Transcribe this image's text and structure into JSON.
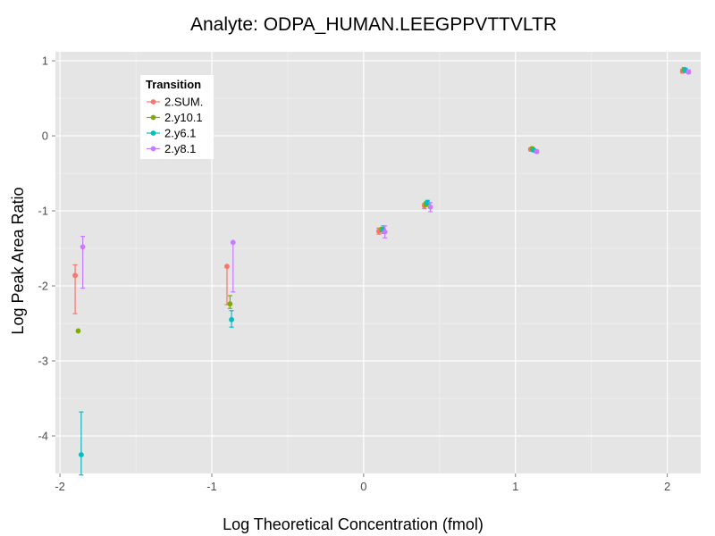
{
  "chart_data": {
    "type": "scatter",
    "title": "Analyte: ODPA_HUMAN.LEEGPPVTTVLTR",
    "xlabel": "Log Theoretical Concentration (fmol)",
    "ylabel": "Log Peak Area Ratio",
    "xlim": [
      -2.03,
      2.22
    ],
    "ylim": [
      -4.5,
      1.12
    ],
    "x_ticks": [
      "-2",
      "-1",
      "0",
      "1",
      "2"
    ],
    "y_ticks": [
      "1",
      "0",
      "-1",
      "-2",
      "-3",
      "-4"
    ],
    "grid": true,
    "legend": {
      "title": "Transition",
      "position": "top-left",
      "entries": [
        "2.SUM.",
        "2.y10.1",
        "2.y6.1",
        "2.y8.1"
      ]
    },
    "series": [
      {
        "name": "2.SUM.",
        "color": "#F8766D",
        "points": [
          {
            "x": -1.9,
            "y": -1.86,
            "ylo": -2.37,
            "yhi": -1.72
          },
          {
            "x": -0.9,
            "y": -1.74,
            "ylo": -2.25,
            "yhi": -1.74
          },
          {
            "x": 0.1,
            "y": -1.27,
            "ylo": -1.31,
            "yhi": -1.23
          },
          {
            "x": 0.4,
            "y": -0.93,
            "ylo": -0.97,
            "yhi": -0.9
          },
          {
            "x": 1.1,
            "y": -0.18,
            "ylo": -0.2,
            "yhi": -0.16
          },
          {
            "x": 2.1,
            "y": 0.86,
            "ylo": 0.84,
            "yhi": 0.89
          }
        ]
      },
      {
        "name": "2.y10.1",
        "color": "#7CAE00",
        "points": [
          {
            "x": -1.88,
            "y": -2.6,
            "ylo": -2.6,
            "yhi": -2.6
          },
          {
            "x": -0.88,
            "y": -2.24,
            "ylo": -2.3,
            "yhi": -2.13
          },
          {
            "x": 0.12,
            "y": -1.25,
            "ylo": -1.28,
            "yhi": -1.22
          },
          {
            "x": 0.41,
            "y": -0.91,
            "ylo": -0.94,
            "yhi": -0.88
          },
          {
            "x": 1.11,
            "y": -0.17,
            "ylo": -0.19,
            "yhi": -0.15
          },
          {
            "x": 2.11,
            "y": 0.88,
            "ylo": 0.86,
            "yhi": 0.91
          }
        ]
      },
      {
        "name": "2.y6.1",
        "color": "#00BFC4",
        "points": [
          {
            "x": -1.86,
            "y": -4.25,
            "ylo": -4.52,
            "yhi": -3.68
          },
          {
            "x": -0.87,
            "y": -2.45,
            "ylo": -2.55,
            "yhi": -2.33
          },
          {
            "x": 0.13,
            "y": -1.25,
            "ylo": -1.3,
            "yhi": -1.2
          },
          {
            "x": 0.42,
            "y": -0.89,
            "ylo": -0.92,
            "yhi": -0.86
          },
          {
            "x": 1.12,
            "y": -0.19,
            "ylo": -0.21,
            "yhi": -0.17
          },
          {
            "x": 2.12,
            "y": 0.87,
            "ylo": 0.85,
            "yhi": 0.9
          }
        ]
      },
      {
        "name": "2.y8.1",
        "color": "#C77CFF",
        "points": [
          {
            "x": -1.85,
            "y": -1.48,
            "ylo": -2.03,
            "yhi": -1.34
          },
          {
            "x": -0.86,
            "y": -1.42,
            "ylo": -2.08,
            "yhi": -1.42
          },
          {
            "x": 0.14,
            "y": -1.28,
            "ylo": -1.36,
            "yhi": -1.2
          },
          {
            "x": 0.44,
            "y": -0.95,
            "ylo": -1.01,
            "yhi": -0.89
          },
          {
            "x": 1.14,
            "y": -0.21,
            "ylo": -0.23,
            "yhi": -0.19
          },
          {
            "x": 2.14,
            "y": 0.85,
            "ylo": 0.83,
            "yhi": 0.88
          }
        ]
      }
    ]
  }
}
